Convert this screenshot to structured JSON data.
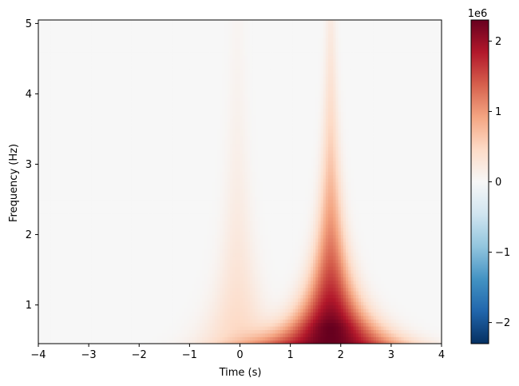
{
  "chart_data": {
    "type": "heatmap",
    "title": "",
    "xlabel": "Time (s)",
    "ylabel": "Frequency (Hz)",
    "xlim": [
      -4,
      4
    ],
    "ylim": [
      0.45,
      5.05
    ],
    "x_ticks": [
      -4,
      -3,
      -2,
      -1,
      0,
      1,
      2,
      3,
      4
    ],
    "x_tick_labels": [
      "−4",
      "−3",
      "−2",
      "−1",
      "0",
      "1",
      "2",
      "3",
      "4"
    ],
    "y_ticks": [
      1,
      2,
      3,
      4,
      5
    ],
    "y_tick_labels": [
      "1",
      "2",
      "3",
      "4",
      "5"
    ],
    "colormap": "RdBu_r",
    "colorbar": {
      "vmin": -2.3,
      "vmax": 2.3,
      "multiplier_label": "1e6",
      "ticks": [
        -2,
        -1,
        0,
        1,
        2
      ],
      "tick_labels": [
        "−2",
        "−1",
        "0",
        "1",
        "2"
      ]
    },
    "hotspots": [
      {
        "time": 1.8,
        "frequency": 0.7,
        "peak_value": 2.3
      },
      {
        "time": -0.05,
        "frequency": 0.75,
        "peak_value": 0.45
      }
    ]
  }
}
